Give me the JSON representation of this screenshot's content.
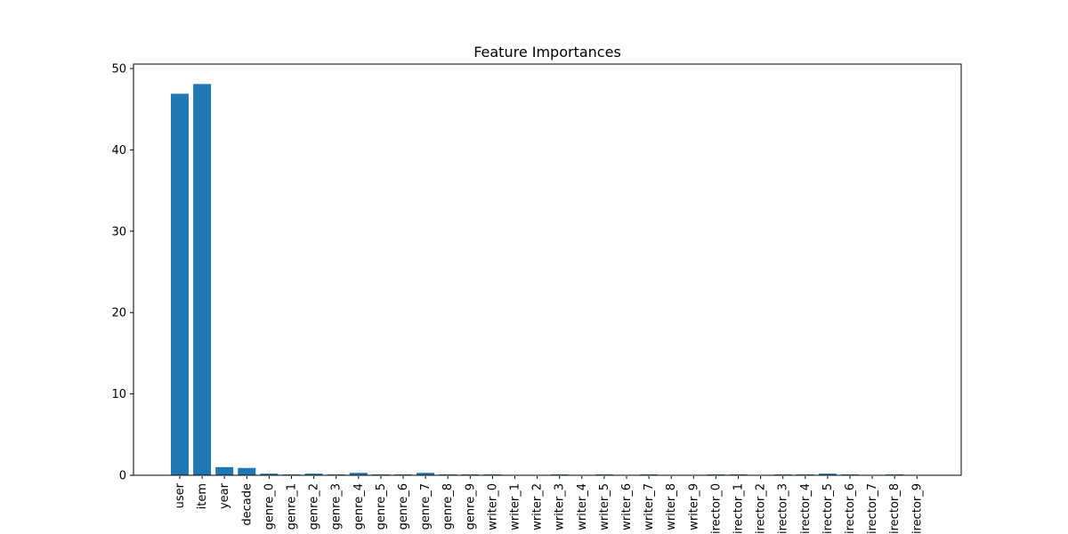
{
  "chart_data": {
    "type": "bar",
    "title": "Feature Importances",
    "xlabel": "",
    "ylabel": "",
    "ylim": [
      0,
      50
    ],
    "yticks": [
      0,
      10,
      20,
      30,
      40,
      50
    ],
    "grid": false,
    "bar_color": "#1f77b4",
    "categories": [
      "user",
      "item",
      "year",
      "decade",
      "genre_0",
      "genre_1",
      "genre_2",
      "genre_3",
      "genre_4",
      "genre_5",
      "genre_6",
      "genre_7",
      "genre_8",
      "genre_9",
      "writer_0",
      "writer_1",
      "writer_2",
      "writer_3",
      "writer_4",
      "writer_5",
      "writer_6",
      "writer_7",
      "writer_8",
      "writer_9",
      "director_0",
      "director_1",
      "director_2",
      "director_3",
      "director_4",
      "director_5",
      "director_6",
      "director_7",
      "director_8",
      "director_9"
    ],
    "values": [
      46.9,
      48.1,
      1.0,
      0.9,
      0.2,
      0.1,
      0.2,
      0.1,
      0.3,
      0.1,
      0.1,
      0.3,
      0.1,
      0.1,
      0.1,
      0.0,
      0.0,
      0.1,
      0.0,
      0.1,
      0.0,
      0.1,
      0.0,
      0.0,
      0.1,
      0.1,
      0.0,
      0.1,
      0.1,
      0.2,
      0.1,
      0.0,
      0.1,
      0.0
    ]
  }
}
